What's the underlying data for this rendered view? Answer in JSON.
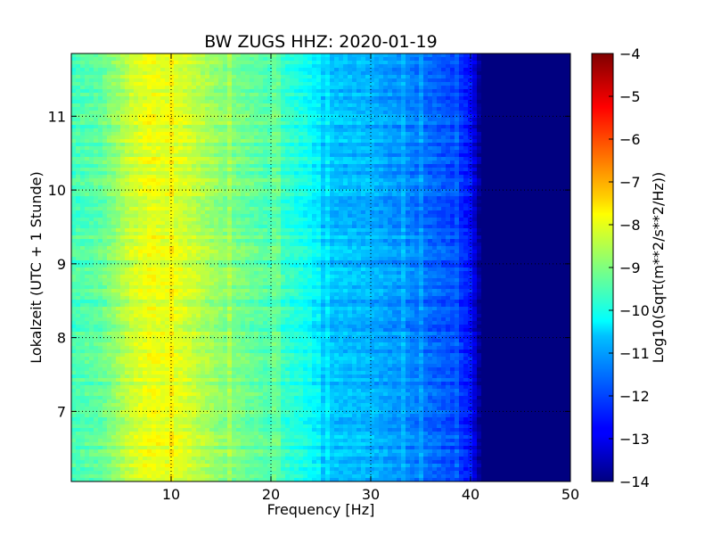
{
  "chart_data": {
    "type": "heatmap",
    "title": "BW ZUGS HHZ: 2020-01-19",
    "xlabel": "Frequency [Hz]",
    "ylabel": "Lokalzeit (UTC + 1 Stunde)",
    "xlim": [
      0,
      50
    ],
    "ylim": [
      11.85,
      6.05
    ],
    "xticks": [
      10,
      20,
      30,
      40,
      50
    ],
    "yticks": [
      7,
      8,
      9,
      10,
      11
    ],
    "grid": true,
    "colormap": "jet",
    "colorbar": {
      "label": "Log10(Sqrt(m**2/s**2/Hz))",
      "range": [
        -14,
        -4
      ],
      "ticks": [
        -4,
        -5,
        -6,
        -7,
        -8,
        -9,
        -10,
        -11,
        -12,
        -13,
        -14
      ]
    },
    "spectral_profile": {
      "frequency_hz": [
        0,
        3,
        6,
        8,
        9,
        11,
        15,
        20,
        24,
        25,
        30,
        35,
        38,
        40,
        41,
        50
      ],
      "log10_amplitude": [
        -9.6,
        -9.3,
        -8.3,
        -7.9,
        -8.0,
        -8.1,
        -8.9,
        -9.5,
        -10.2,
        -10.8,
        -11.0,
        -11.6,
        -12.0,
        -12.6,
        -14.0,
        -14.0
      ]
    },
    "bands": [
      {
        "time": 7.85,
        "max_frequency_hz": 42,
        "level": -12.2
      },
      {
        "time": 8.02,
        "max_frequency_hz": 40,
        "level": -12.4
      },
      {
        "time": 8.2,
        "max_frequency_hz": 43,
        "level": -11.8
      },
      {
        "time": 8.5,
        "max_frequency_hz": 42,
        "level": -12.2
      },
      {
        "time": 8.75,
        "max_frequency_hz": 42,
        "level": -12.0
      },
      {
        "time": 9.5,
        "max_frequency_hz": 43,
        "level": -11.3
      },
      {
        "time": 9.65,
        "max_frequency_hz": 42,
        "level": -12.5
      },
      {
        "time": 9.83,
        "max_frequency_hz": 42,
        "level": -12.3
      },
      {
        "time": 10.05,
        "max_frequency_hz": 40,
        "level": -12.6
      },
      {
        "time": 10.35,
        "max_frequency_hz": 42,
        "level": -12.4
      },
      {
        "time": 10.6,
        "max_frequency_hz": 42,
        "level": -12.3
      },
      {
        "time": 11.3,
        "max_frequency_hz": 42,
        "level": -12.5
      },
      {
        "time": 11.6,
        "max_frequency_hz": 42,
        "level": -12.3
      }
    ]
  }
}
